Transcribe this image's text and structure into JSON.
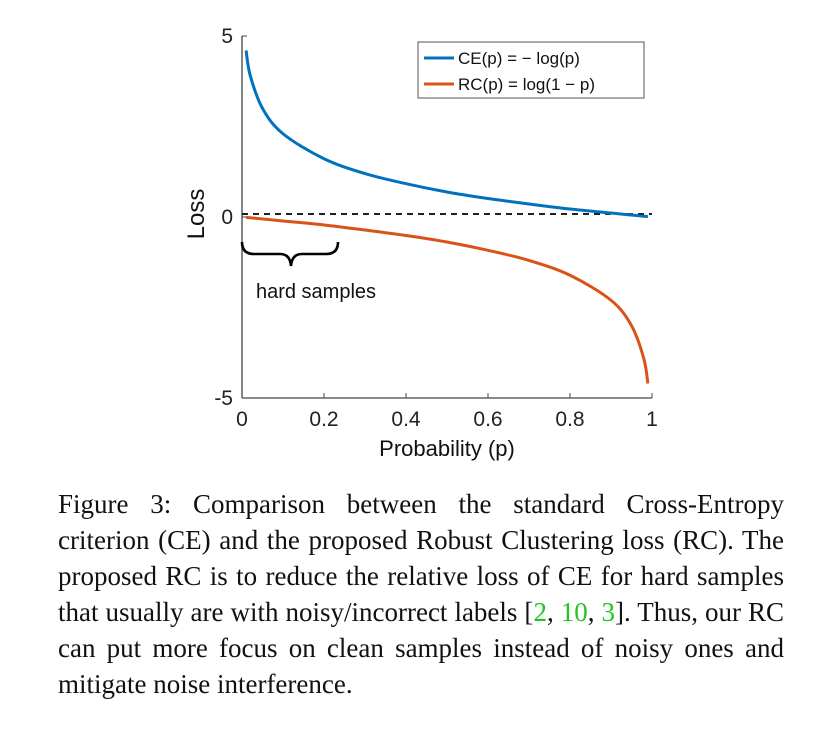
{
  "chart_data": {
    "type": "line",
    "xlabel": "Probability (p)",
    "ylabel": "Loss",
    "xlim": [
      0,
      1
    ],
    "ylim": [
      -5,
      5
    ],
    "xticks": [
      "0",
      "0.2",
      "0.4",
      "0.6",
      "0.8",
      "1"
    ],
    "yticks": [
      "-5",
      "0",
      "5"
    ],
    "legend_position": "top-right",
    "reference_line": {
      "y": 0,
      "style": "dashed"
    },
    "series": [
      {
        "name": "CE(p) = − log(p)",
        "color": "#0072BD",
        "x": [
          0.01,
          0.02,
          0.05,
          0.1,
          0.2,
          0.3,
          0.4,
          0.5,
          0.6,
          0.7,
          0.8,
          0.9,
          0.99
        ],
        "y": [
          4.6,
          3.91,
          3.0,
          2.3,
          1.61,
          1.2,
          0.92,
          0.69,
          0.51,
          0.36,
          0.22,
          0.11,
          0.01
        ]
      },
      {
        "name": "RC(p) = log(1 − p)",
        "color": "#D95319",
        "x": [
          0.01,
          0.1,
          0.2,
          0.3,
          0.4,
          0.5,
          0.6,
          0.7,
          0.8,
          0.9,
          0.95,
          0.98,
          0.99
        ],
        "y": [
          -0.01,
          -0.11,
          -0.22,
          -0.36,
          -0.51,
          -0.69,
          -0.92,
          -1.2,
          -1.61,
          -2.3,
          -3.0,
          -3.91,
          -4.6
        ]
      }
    ],
    "annotations": [
      {
        "text": "hard samples",
        "x_range": [
          0,
          0.24
        ]
      }
    ]
  },
  "caption": {
    "label": "Figure 3:",
    "text_before_cites": "Comparison between the standard Cross-Entropy criterion (CE) and the proposed Robust Clustering loss (RC). The proposed RC is to reduce the relative loss of CE for hard samples that usually are with noisy/incorrect labels [",
    "cite_1": "2",
    "sep_1": ", ",
    "cite_2": "10",
    "sep_2": ", ",
    "cite_3": "3",
    "text_after_cites": "]. Thus, our RC can put more focus on clean samples instead of noisy ones and mitigate noise interference."
  }
}
